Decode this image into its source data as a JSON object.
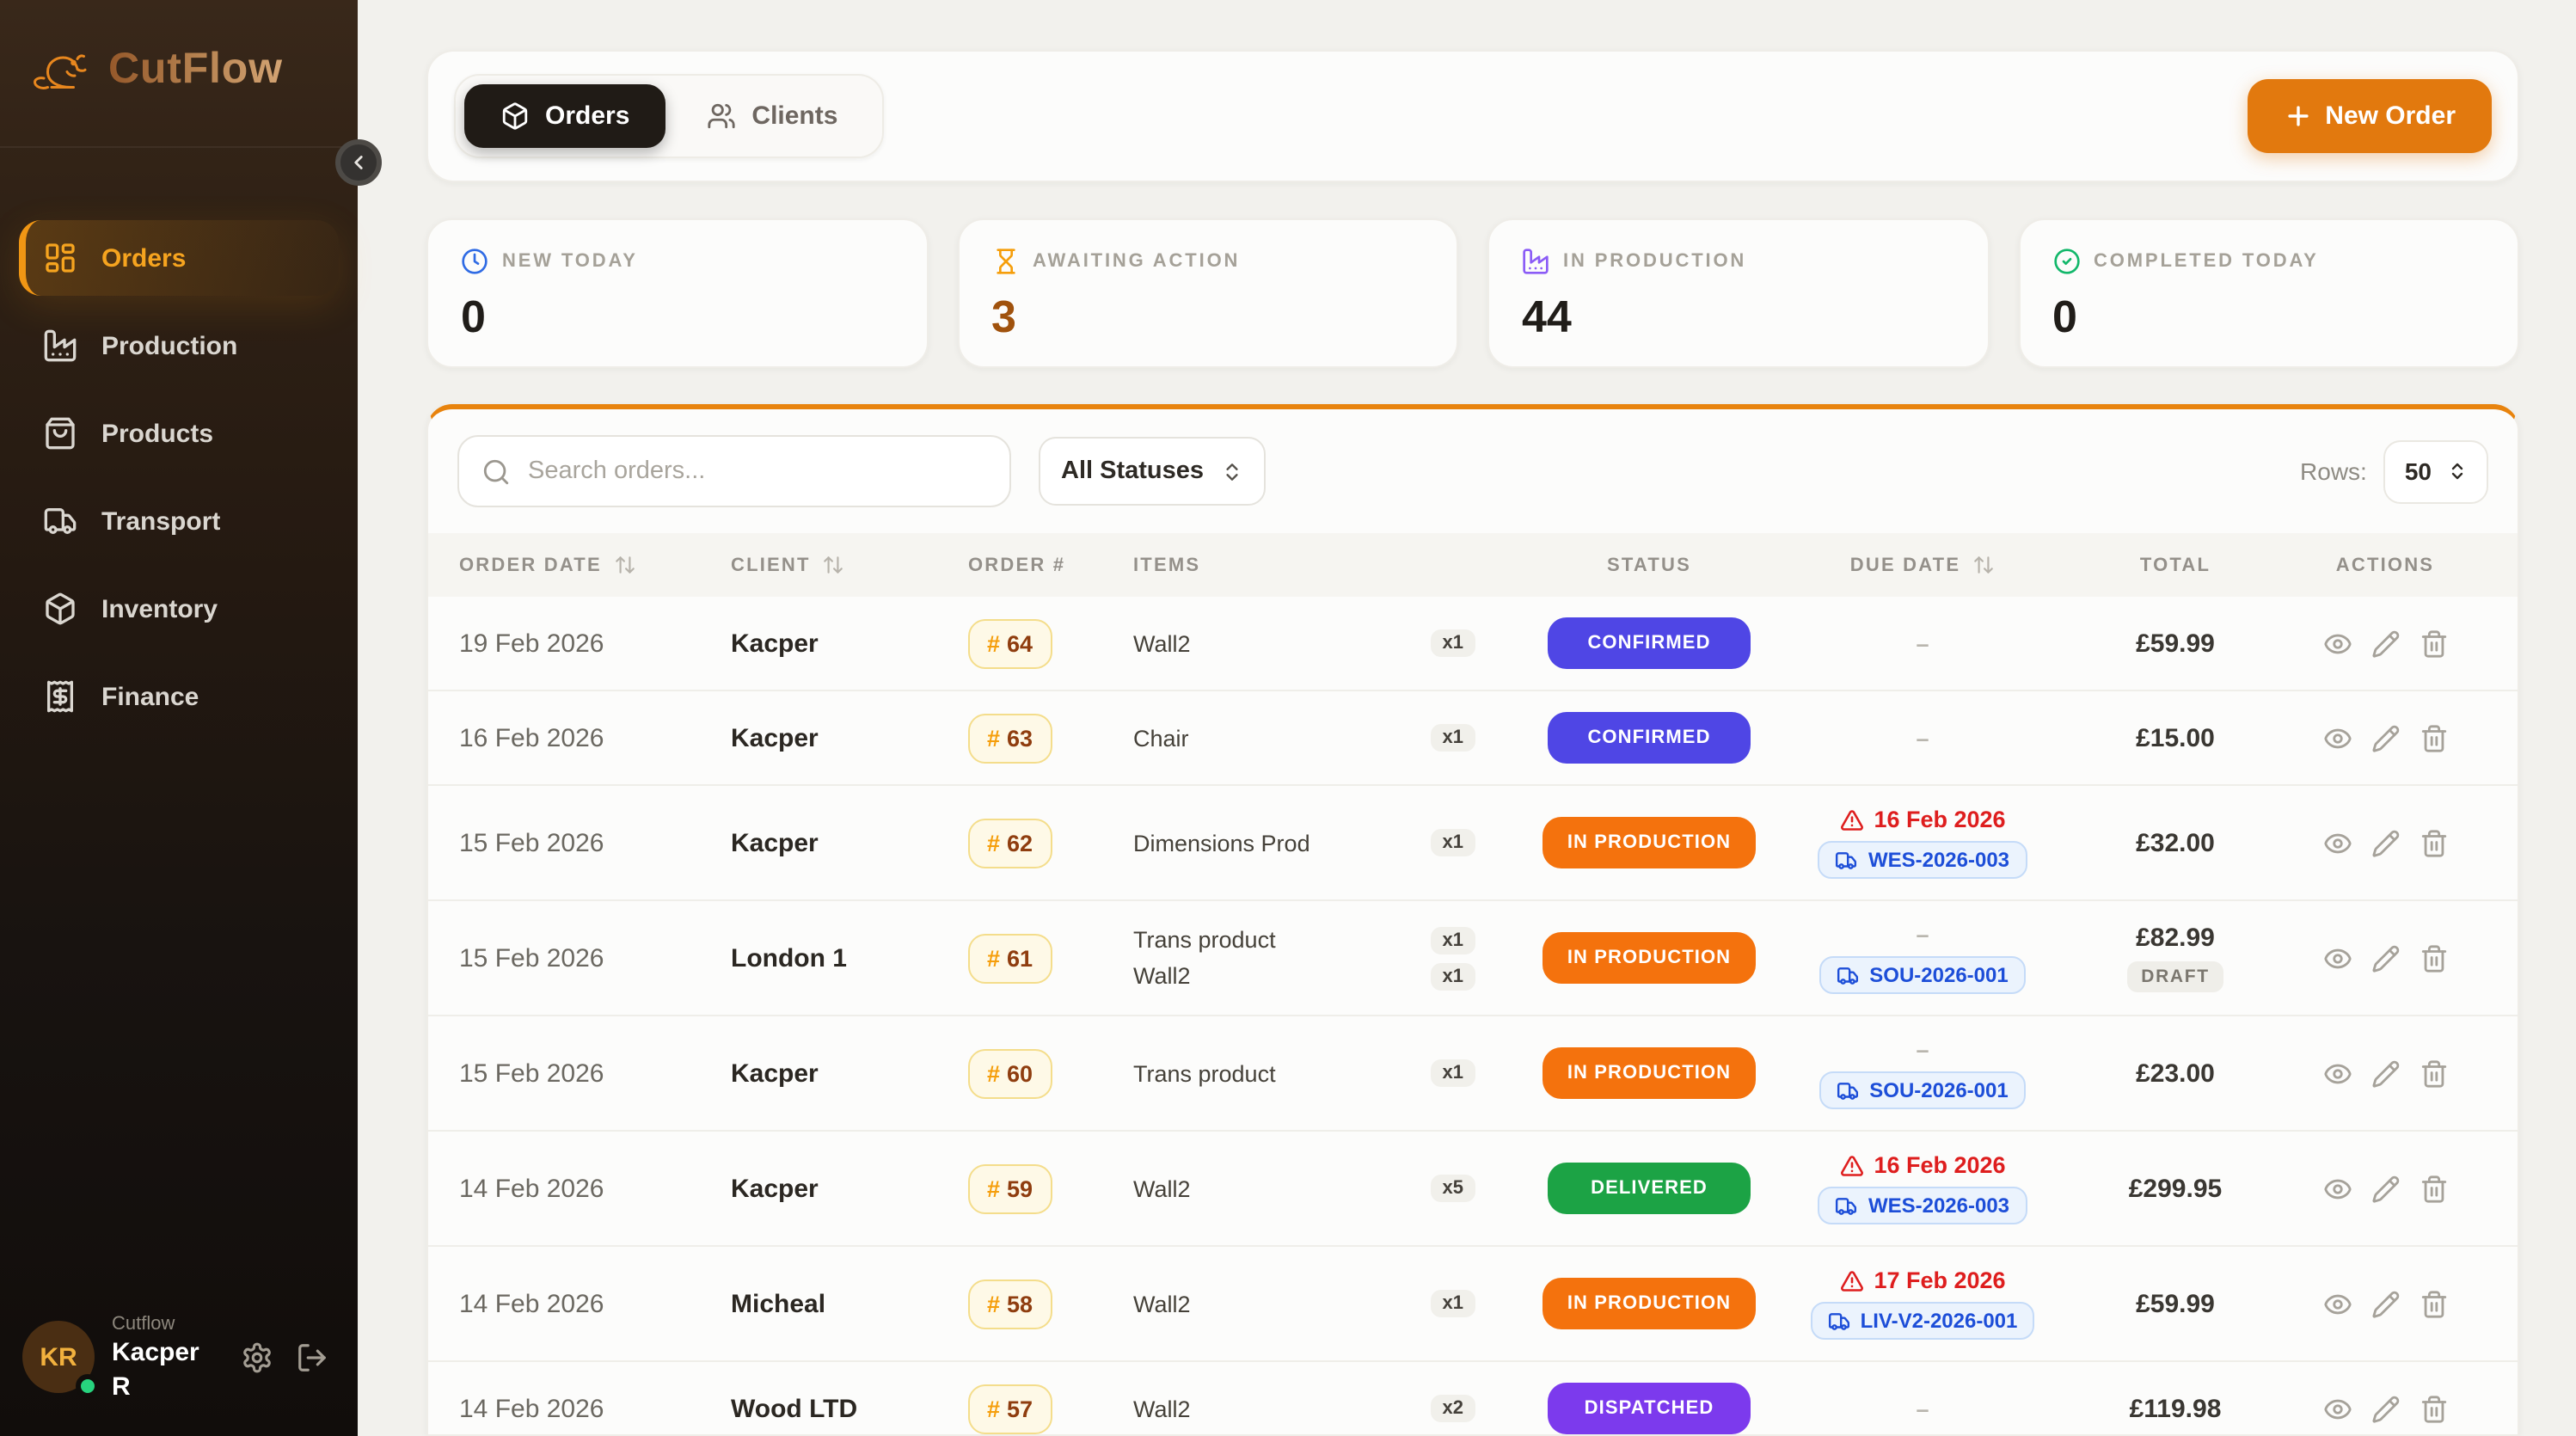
{
  "app": {
    "name": "CutFlow",
    "logo_icon": "beaver-icon"
  },
  "sidebar": {
    "items": [
      {
        "label": "Orders",
        "icon": "dashboard-grid-icon",
        "active": true
      },
      {
        "label": "Production",
        "icon": "factory-icon",
        "active": false
      },
      {
        "label": "Products",
        "icon": "shopping-bag-icon",
        "active": false
      },
      {
        "label": "Transport",
        "icon": "truck-icon",
        "active": false
      },
      {
        "label": "Inventory",
        "icon": "package-icon",
        "active": false
      },
      {
        "label": "Finance",
        "icon": "receipt-icon",
        "active": false
      }
    ],
    "user": {
      "initials": "KR",
      "org": "Cutflow",
      "name": "Kacper R",
      "online": true
    }
  },
  "header": {
    "tabs": [
      {
        "label": "Orders",
        "icon": "package-icon",
        "active": true
      },
      {
        "label": "Clients",
        "icon": "users-icon",
        "active": false
      }
    ],
    "new_order_label": "New Order"
  },
  "stats": [
    {
      "label": "NEW TODAY",
      "value": "0",
      "icon": "clock-icon",
      "icon_color": "#2F6BE4",
      "value_color": "#201D19"
    },
    {
      "label": "AWAITING ACTION",
      "value": "3",
      "icon": "hourglass-icon",
      "icon_color": "#F59E0B",
      "value_color": "#A0520D"
    },
    {
      "label": "IN PRODUCTION",
      "value": "44",
      "icon": "factory-icon",
      "icon_color": "#8B5CF6",
      "value_color": "#201D19"
    },
    {
      "label": "COMPLETED TODAY",
      "value": "0",
      "icon": "check-circle-icon",
      "icon_color": "#12B76A",
      "value_color": "#201D19"
    }
  ],
  "toolbar": {
    "search_placeholder": "Search orders...",
    "status_filter_value": "All Statuses",
    "rows_label": "Rows:",
    "rows_value": "50"
  },
  "colors": {
    "accent_orange": "#E2790E",
    "status_confirmed": "#4F46E5",
    "status_in_production": "#F4720D",
    "status_delivered": "#1CA345",
    "status_dispatched": "#7C3AED",
    "overdue_red": "#DE1E1E",
    "transport_blue": "#1D4ED8"
  },
  "table": {
    "columns": [
      {
        "label": "ORDER DATE",
        "sortable": true
      },
      {
        "label": "CLIENT",
        "sortable": true
      },
      {
        "label": "ORDER #",
        "sortable": false
      },
      {
        "label": "ITEMS",
        "sortable": false
      },
      {
        "label": "STATUS",
        "sortable": false
      },
      {
        "label": "DUE DATE",
        "sortable": true
      },
      {
        "label": "TOTAL",
        "sortable": false
      },
      {
        "label": "ACTIONS",
        "sortable": false
      }
    ],
    "rows": [
      {
        "order_date": "19 Feb 2026",
        "client": "Kacper",
        "order_number": "64",
        "items": [
          {
            "name": "Wall2",
            "qty": "x1"
          }
        ],
        "status": {
          "label": "CONFIRMED",
          "color": "#4F46E5"
        },
        "due": {
          "dash": true
        },
        "total": "£59.99"
      },
      {
        "order_date": "16 Feb 2026",
        "client": "Kacper",
        "order_number": "63",
        "items": [
          {
            "name": "Chair",
            "qty": "x1"
          }
        ],
        "status": {
          "label": "CONFIRMED",
          "color": "#4F46E5"
        },
        "due": {
          "dash": true
        },
        "total": "£15.00"
      },
      {
        "order_date": "15 Feb 2026",
        "client": "Kacper",
        "order_number": "62",
        "items": [
          {
            "name": "Dimensions Prod",
            "qty": "x1"
          }
        ],
        "status": {
          "label": "IN PRODUCTION",
          "color": "#F4720D"
        },
        "due": {
          "overdue_date": "16 Feb 2026",
          "transport": "WES-2026-003"
        },
        "total": "£32.00"
      },
      {
        "order_date": "15 Feb 2026",
        "client": "London 1",
        "order_number": "61",
        "items": [
          {
            "name": "Trans product",
            "qty": "x1"
          },
          {
            "name": "Wall2",
            "qty": "x1"
          }
        ],
        "status": {
          "label": "IN PRODUCTION",
          "color": "#F4720D"
        },
        "due": {
          "dash": true,
          "transport": "SOU-2026-001"
        },
        "total": "£82.99",
        "total_tag": "DRAFT"
      },
      {
        "order_date": "15 Feb 2026",
        "client": "Kacper",
        "order_number": "60",
        "items": [
          {
            "name": "Trans product",
            "qty": "x1"
          }
        ],
        "status": {
          "label": "IN PRODUCTION",
          "color": "#F4720D"
        },
        "due": {
          "dash": true,
          "transport": "SOU-2026-001"
        },
        "total": "£23.00"
      },
      {
        "order_date": "14 Feb 2026",
        "client": "Kacper",
        "order_number": "59",
        "items": [
          {
            "name": "Wall2",
            "qty": "x5"
          }
        ],
        "status": {
          "label": "DELIVERED",
          "color": "#1CA345"
        },
        "due": {
          "overdue_date": "16 Feb 2026",
          "transport": "WES-2026-003"
        },
        "total": "£299.95"
      },
      {
        "order_date": "14 Feb 2026",
        "client": "Micheal",
        "order_number": "58",
        "items": [
          {
            "name": "Wall2",
            "qty": "x1"
          }
        ],
        "status": {
          "label": "IN PRODUCTION",
          "color": "#F4720D"
        },
        "due": {
          "overdue_date": "17 Feb 2026",
          "transport": "LIV-V2-2026-001"
        },
        "total": "£59.99"
      },
      {
        "order_date": "14 Feb 2026",
        "client": "Wood LTD",
        "order_number": "57",
        "items": [
          {
            "name": "Wall2",
            "qty": "x2"
          }
        ],
        "status": {
          "label": "DISPATCHED",
          "color": "#7C3AED"
        },
        "due": {
          "dash": true
        },
        "total": "£119.98"
      }
    ]
  }
}
